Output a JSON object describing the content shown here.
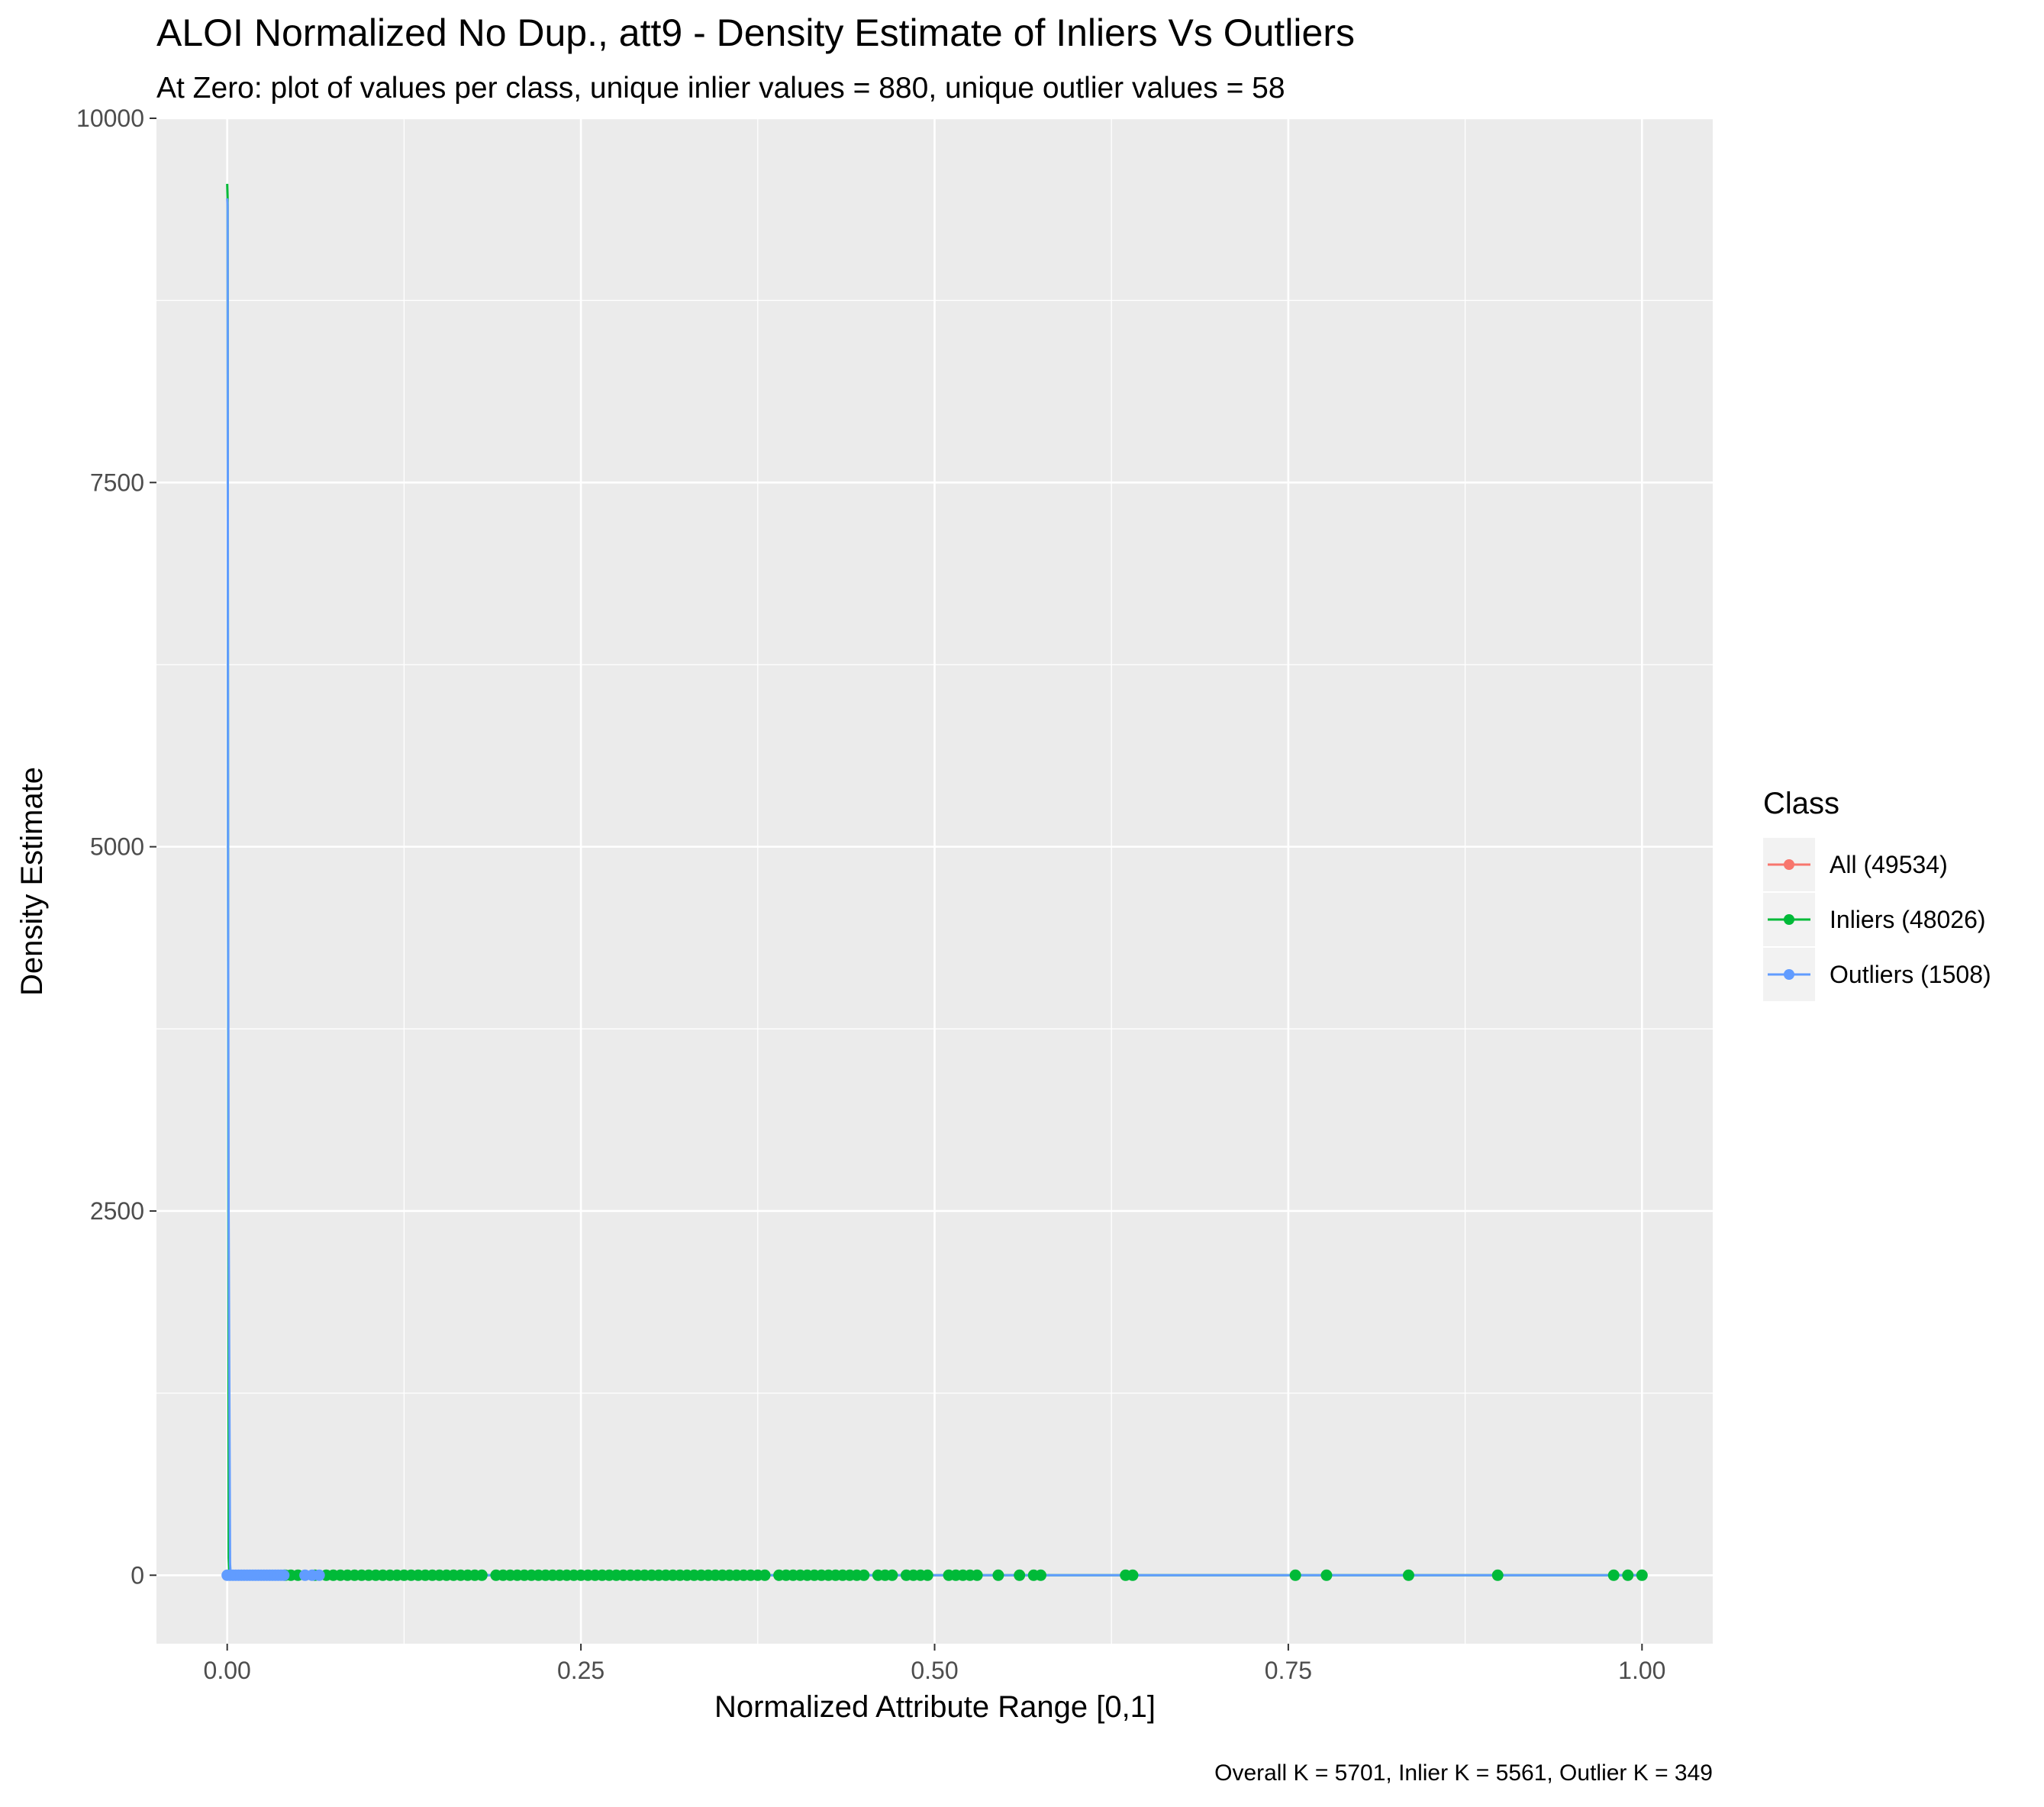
{
  "chart_data": {
    "type": "line",
    "title": "ALOI Normalized No Dup., att9 - Density Estimate of Inliers Vs Outliers",
    "subtitle": "At Zero: plot of values per class, unique inlier values = 880, unique outlier values = 58",
    "xlabel": "Normalized Attribute Range [0,1]",
    "ylabel": "Density Estimate",
    "caption": "Overall K = 5701, Inlier K = 5561, Outlier K = 349",
    "xlim": [
      -0.05,
      1.05
    ],
    "ylim": [
      -470,
      10000
    ],
    "x_ticks": [
      0.0,
      0.25,
      0.5,
      0.75,
      1.0
    ],
    "x_tick_labels": [
      "0.00",
      "0.25",
      "0.50",
      "0.75",
      "1.00"
    ],
    "y_ticks": [
      0,
      2500,
      5000,
      7500,
      10000
    ],
    "y_tick_labels": [
      "0",
      "2500",
      "5000",
      "7500",
      "10000"
    ],
    "grid": true,
    "legend": {
      "title": "Class",
      "placement": "right",
      "entries": [
        {
          "label": "All (49534)",
          "color": "#F8766D"
        },
        {
          "label": "Inliers (48026)",
          "color": "#00BA38"
        },
        {
          "label": "Outliers (1508)",
          "color": "#619CFF"
        }
      ]
    },
    "series": [
      {
        "name": "Inliers (48026)",
        "color": "#00BA38",
        "x": [
          0.0,
          0.0003,
          0.0006,
          0.001,
          0.0015,
          0.1,
          0.5,
          1.0
        ],
        "y": [
          9550,
          9450,
          4750,
          120,
          2,
          0,
          0,
          0
        ]
      },
      {
        "name": "Outliers (1508)",
        "color": "#619CFF",
        "x": [
          0.0,
          0.0003,
          0.0006,
          0.001,
          0.002,
          0.0025,
          0.1,
          0.5,
          1.0
        ],
        "y": [
          9450,
          9400,
          4800,
          2500,
          80,
          0,
          0,
          0,
          0
        ]
      }
    ],
    "zero_points": {
      "outliers_x": [
        0.0,
        0.002,
        0.004,
        0.006,
        0.008,
        0.01,
        0.012,
        0.014,
        0.016,
        0.018,
        0.02,
        0.022,
        0.024,
        0.026,
        0.028,
        0.03,
        0.032,
        0.034,
        0.036,
        0.038,
        0.04,
        0.055,
        0.06,
        0.065
      ],
      "inliers_x": [
        0.041,
        0.045,
        0.05,
        0.062,
        0.07,
        0.075,
        0.08,
        0.085,
        0.09,
        0.095,
        0.1,
        0.105,
        0.11,
        0.115,
        0.12,
        0.125,
        0.13,
        0.135,
        0.14,
        0.145,
        0.15,
        0.155,
        0.16,
        0.165,
        0.17,
        0.175,
        0.18,
        0.19,
        0.195,
        0.2,
        0.205,
        0.21,
        0.215,
        0.22,
        0.225,
        0.23,
        0.235,
        0.24,
        0.245,
        0.25,
        0.255,
        0.26,
        0.265,
        0.27,
        0.275,
        0.28,
        0.285,
        0.29,
        0.295,
        0.3,
        0.305,
        0.31,
        0.315,
        0.32,
        0.325,
        0.33,
        0.335,
        0.34,
        0.345,
        0.35,
        0.355,
        0.36,
        0.365,
        0.37,
        0.375,
        0.38,
        0.39,
        0.395,
        0.4,
        0.405,
        0.41,
        0.415,
        0.42,
        0.425,
        0.43,
        0.435,
        0.44,
        0.445,
        0.45,
        0.46,
        0.465,
        0.47,
        0.48,
        0.485,
        0.49,
        0.495,
        0.51,
        0.515,
        0.52,
        0.525,
        0.53,
        0.545,
        0.56,
        0.57,
        0.575,
        0.635,
        0.64,
        0.755,
        0.777,
        0.835,
        0.898,
        0.98,
        0.99,
        1.0
      ]
    }
  }
}
